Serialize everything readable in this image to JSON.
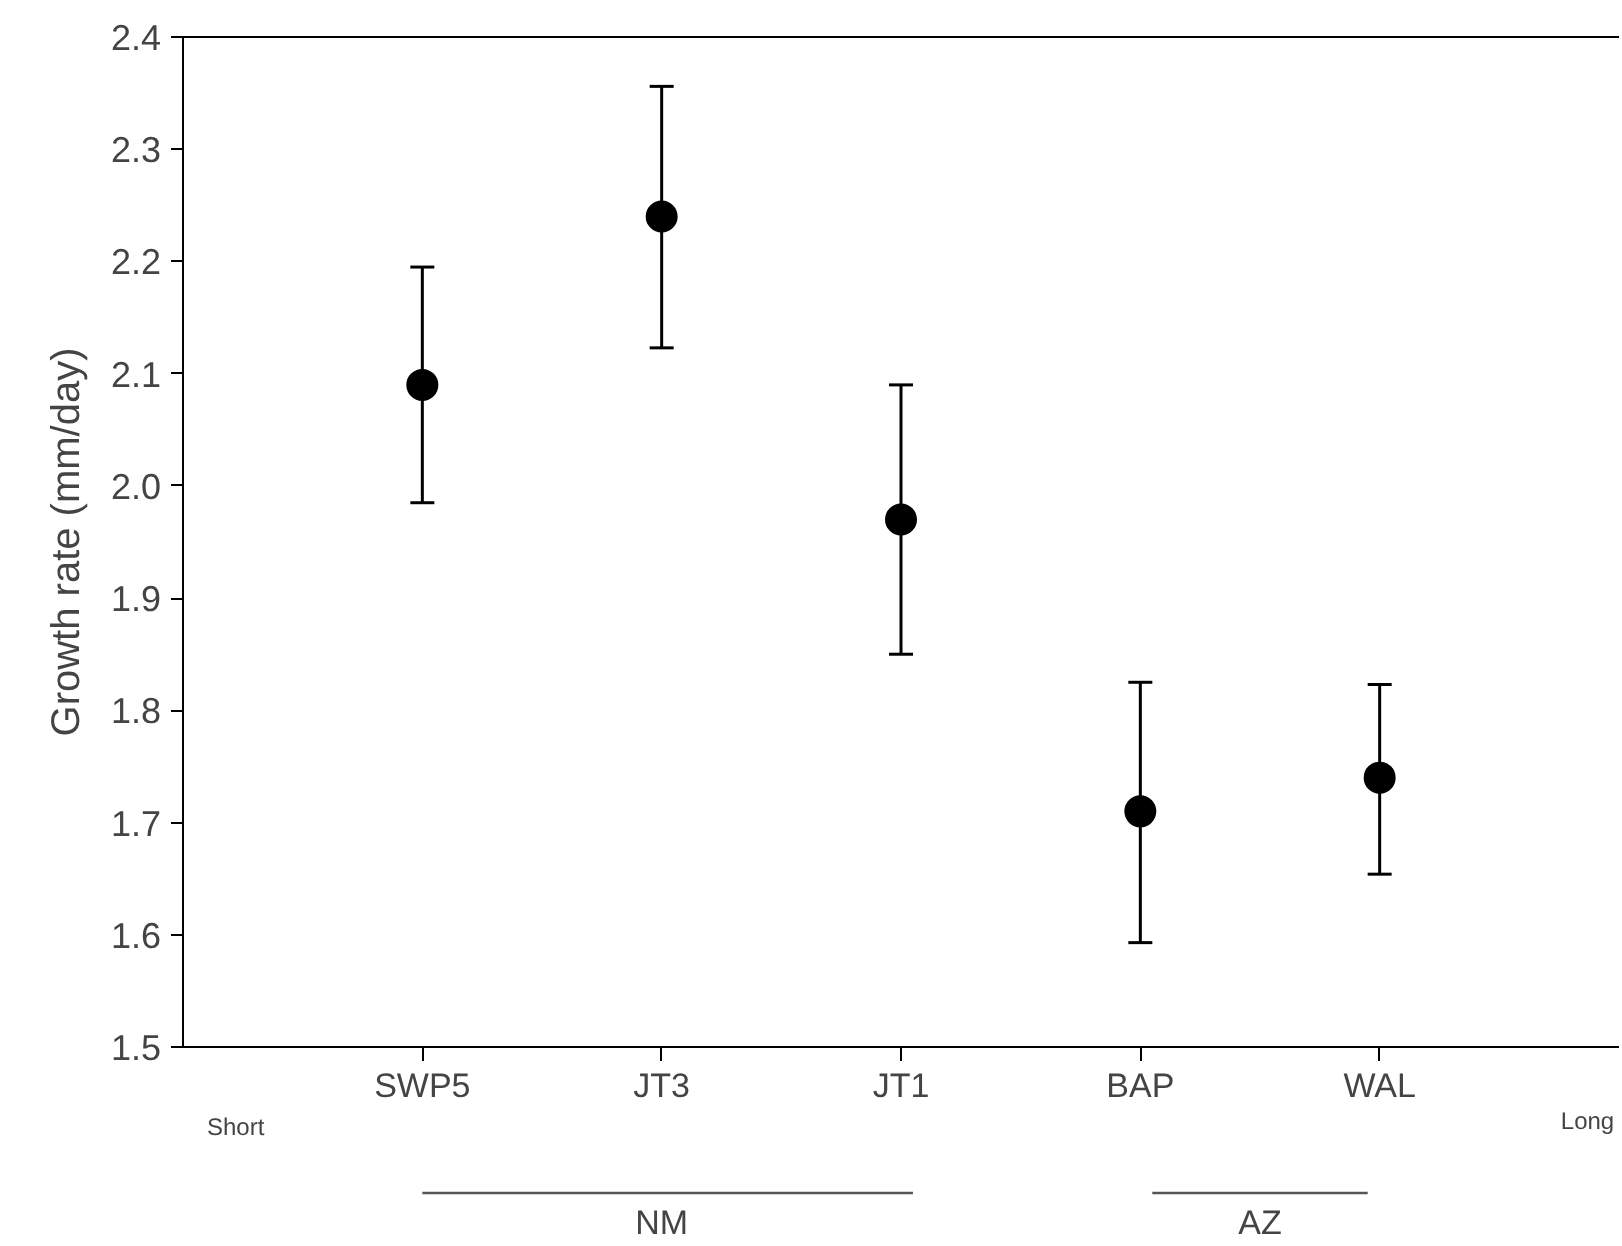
{
  "chart_data": {
    "type": "scatter",
    "ylabel": "Growth rate (mm/day)",
    "categories": [
      "SWP5",
      "JT3",
      "JT1",
      "BAP",
      "WAL"
    ],
    "series": [
      {
        "color": "#000000",
        "values": [
          2.09,
          2.24,
          1.97,
          1.71,
          1.74
        ],
        "errors": [
          [
            1.985,
            2.195
          ],
          [
            2.123,
            2.356
          ],
          [
            1.85,
            2.09
          ],
          [
            1.593,
            1.825
          ],
          [
            1.654,
            1.823
          ]
        ]
      }
    ],
    "ylim": [
      1.5,
      2.4
    ],
    "yticks": [
      1.5,
      1.6,
      1.7,
      1.8,
      1.9,
      {
        "value": 2.0,
        "label": "2.0"
      },
      2.1,
      2.2,
      2.3,
      2.4
    ],
    "marker": "circle",
    "grid": false,
    "annotations": [
      "Short",
      "Long",
      "NM",
      "AZ"
    ]
  }
}
